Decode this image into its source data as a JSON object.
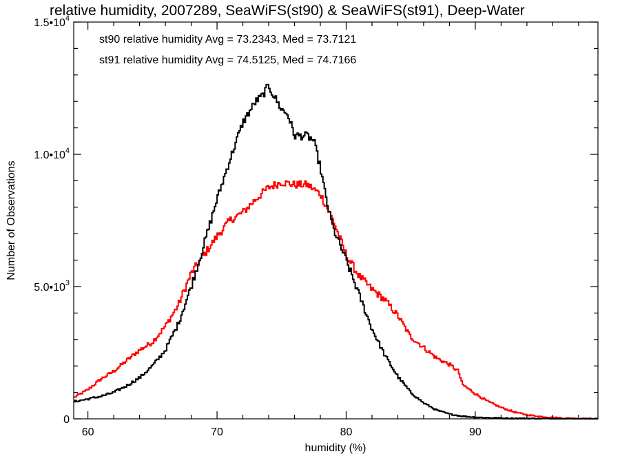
{
  "chart_data": {
    "type": "line",
    "title": "relative humidity, 2007289, SeaWiFS(st90) & SeaWiFS(st91), Deep-Water",
    "xlabel": "humidity (%)",
    "ylabel": "Number of Observations",
    "xlim": [
      58.9,
      99.5
    ],
    "ylim": [
      0,
      15000
    ],
    "x_ticks": [
      {
        "value": 60,
        "label": "60"
      },
      {
        "value": 70,
        "label": "70"
      },
      {
        "value": 80,
        "label": "80"
      },
      {
        "value": 90,
        "label": "90"
      }
    ],
    "y_ticks": [
      {
        "value": 0,
        "mantissa": "0",
        "exponent": ""
      },
      {
        "value": 5000,
        "mantissa": "5.0•10",
        "exponent": "3"
      },
      {
        "value": 10000,
        "mantissa": "1.0•10",
        "exponent": "4"
      },
      {
        "value": 15000,
        "mantissa": "1.5•10",
        "exponent": "4"
      }
    ],
    "legend_position": "top-left",
    "grid": false,
    "series": [
      {
        "name": "st90 relative humidity Avg = 73.2343, Med = 73.7121",
        "color": "#000000",
        "points": [
          [
            58.9,
            650
          ],
          [
            60,
            750
          ],
          [
            61,
            850
          ],
          [
            62,
            1000
          ],
          [
            63,
            1250
          ],
          [
            64,
            1550
          ],
          [
            65,
            2000
          ],
          [
            66,
            2600
          ],
          [
            67,
            3600
          ],
          [
            68,
            5000
          ],
          [
            69,
            6600
          ],
          [
            70,
            8300
          ],
          [
            71,
            9800
          ],
          [
            72,
            11200
          ],
          [
            73,
            12000
          ],
          [
            73.5,
            12200
          ],
          [
            74,
            12600
          ],
          [
            74.3,
            12300
          ],
          [
            75,
            11700
          ],
          [
            75.5,
            11500
          ],
          [
            76,
            10700
          ],
          [
            77,
            10700
          ],
          [
            77.5,
            10500
          ],
          [
            78,
            9500
          ],
          [
            78.5,
            8200
          ],
          [
            79,
            7200
          ],
          [
            80,
            6000
          ],
          [
            81,
            4700
          ],
          [
            82,
            3400
          ],
          [
            83,
            2400
          ],
          [
            84,
            1600
          ],
          [
            85,
            1000
          ],
          [
            86,
            600
          ],
          [
            87,
            330
          ],
          [
            88,
            180
          ],
          [
            89,
            100
          ],
          [
            90,
            60
          ],
          [
            92,
            25
          ],
          [
            95,
            8
          ],
          [
            99.5,
            0
          ]
        ]
      },
      {
        "name": "st91 relative humidity Avg = 74.5125, Med = 74.7166",
        "color": "#ff0000",
        "points": [
          [
            58.9,
            800
          ],
          [
            60,
            1100
          ],
          [
            61,
            1500
          ],
          [
            62,
            1800
          ],
          [
            63,
            2200
          ],
          [
            64,
            2600
          ],
          [
            65,
            2900
          ],
          [
            66,
            3500
          ],
          [
            67,
            4300
          ],
          [
            68,
            5500
          ],
          [
            69,
            6200
          ],
          [
            70,
            6900
          ],
          [
            71,
            7500
          ],
          [
            72,
            7800
          ],
          [
            73,
            8300
          ],
          [
            74,
            8750
          ],
          [
            75,
            8950
          ],
          [
            76,
            8850
          ],
          [
            77,
            8850
          ],
          [
            78,
            8500
          ],
          [
            79,
            7500
          ],
          [
            80,
            6200
          ],
          [
            81,
            5400
          ],
          [
            82,
            4900
          ],
          [
            83,
            4500
          ],
          [
            84,
            3900
          ],
          [
            85,
            3100
          ],
          [
            86,
            2700
          ],
          [
            87,
            2300
          ],
          [
            88,
            2050
          ],
          [
            88.7,
            1800
          ],
          [
            89,
            1300
          ],
          [
            90,
            950
          ],
          [
            91,
            650
          ],
          [
            92,
            430
          ],
          [
            93,
            260
          ],
          [
            94,
            150
          ],
          [
            95,
            90
          ],
          [
            96,
            50
          ],
          [
            97,
            25
          ],
          [
            98,
            10
          ],
          [
            99.5,
            0
          ]
        ]
      }
    ]
  }
}
